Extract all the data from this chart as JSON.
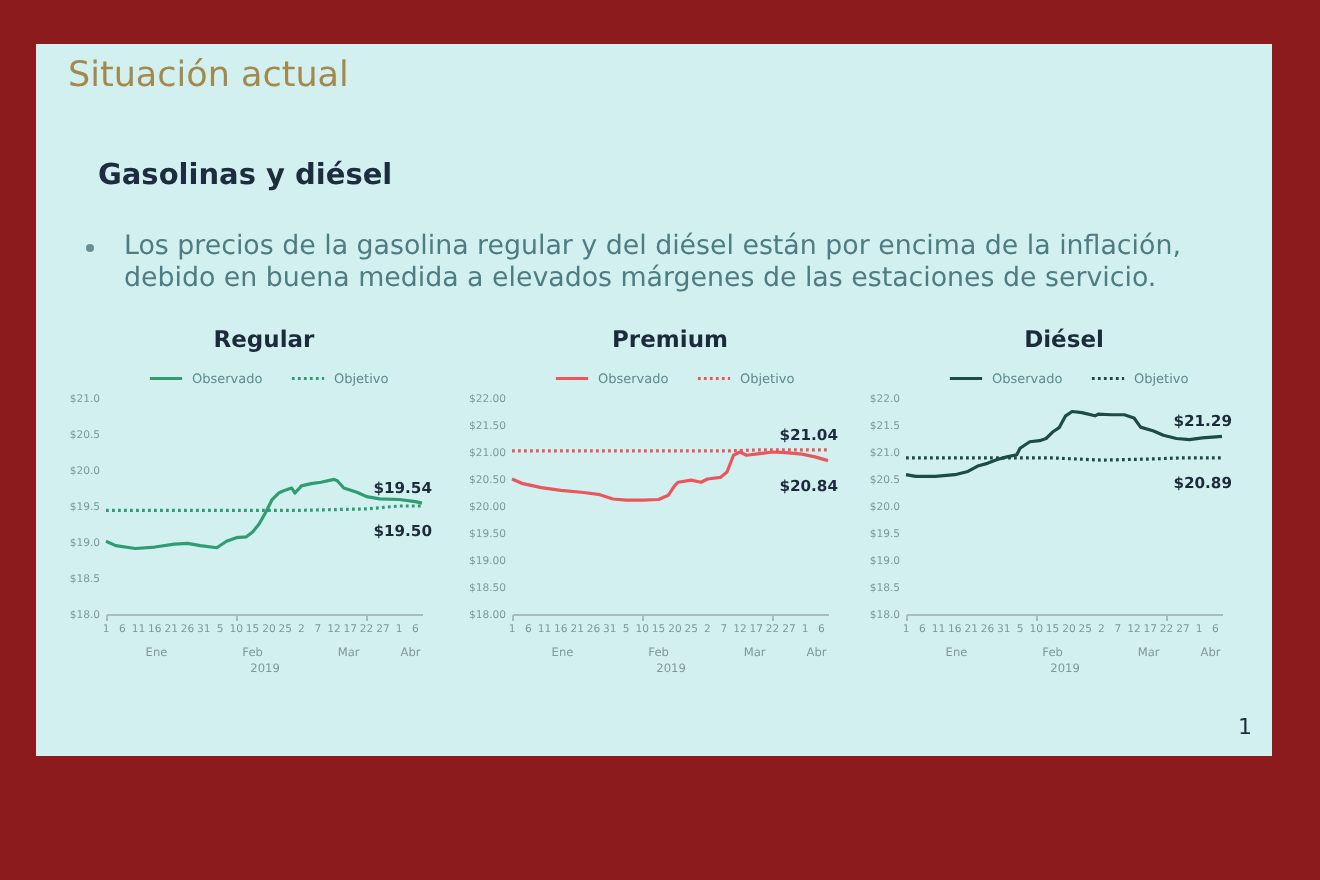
{
  "chart_data": [
    {
      "type": "other",
      "title": "Situación actual",
      "subtitle": "Gasolinas y diésel",
      "annotations": [
        "Los precios de la gasolina regular y del diésel están por encima de la inflación, debido en buena medida a elevados márgenes de las estaciones de servicio.",
        "1"
      ]
    },
    {
      "type": "line",
      "title": "Regular",
      "xlabel": "2019",
      "legend": "top",
      "xlim": [
        "2019-01-01",
        "2019-04-08"
      ],
      "xticks": [
        {
          "value": "2019-01-01",
          "label": "1"
        },
        {
          "value": "2019-01-06",
          "label": "6"
        },
        {
          "value": "2019-01-11",
          "label": "11"
        },
        {
          "value": "2019-01-16",
          "label": "16"
        },
        {
          "value": "2019-01-21",
          "label": "21"
        },
        {
          "value": "2019-01-26",
          "label": "26"
        },
        {
          "value": "2019-01-31",
          "label": "31"
        },
        {
          "value": "2019-02-05",
          "label": "5"
        },
        {
          "value": "2019-02-10",
          "label": "10"
        },
        {
          "value": "2019-02-15",
          "label": "15"
        },
        {
          "value": "2019-02-20",
          "label": "20"
        },
        {
          "value": "2019-02-25",
          "label": "25"
        },
        {
          "value": "2019-03-02",
          "label": "2"
        },
        {
          "value": "2019-03-07",
          "label": "7"
        },
        {
          "value": "2019-03-12",
          "label": "12"
        },
        {
          "value": "2019-03-17",
          "label": "17"
        },
        {
          "value": "2019-03-22",
          "label": "22"
        },
        {
          "value": "2019-03-27",
          "label": "27"
        },
        {
          "value": "2019-04-01",
          "label": "1"
        },
        {
          "value": "2019-04-06",
          "label": "6"
        }
      ],
      "ylim": [
        18,
        21
      ],
      "yticks": [
        {
          "value": 18,
          "label": "$18.0"
        },
        {
          "value": 18.5,
          "label": "$18.5"
        },
        {
          "value": 19,
          "label": "$19.0"
        },
        {
          "value": 19.5,
          "label": "$19.5"
        },
        {
          "value": 20,
          "label": "$20.0"
        },
        {
          "value": 20.5,
          "label": "$20.5"
        },
        {
          "value": 21,
          "label": "$21.0"
        }
      ],
      "series": [
        {
          "name": "Observado",
          "color": "#2f9c72",
          "line_style": "solid",
          "x": [
            "2019-01-01",
            "2019-01-04",
            "2019-01-10",
            "2019-01-16",
            "2019-01-22",
            "2019-01-26",
            "2019-01-30",
            "2019-02-04",
            "2019-02-07",
            "2019-02-10",
            "2019-02-13",
            "2019-02-15",
            "2019-02-17",
            "2019-02-19",
            "2019-02-21",
            "2019-02-23",
            "2019-02-25",
            "2019-02-27",
            "2019-02-28",
            "2019-03-02",
            "2019-03-05",
            "2019-03-08",
            "2019-03-12",
            "2019-03-13",
            "2019-03-15",
            "2019-03-19",
            "2019-03-22",
            "2019-03-26",
            "2019-04-01",
            "2019-04-06",
            "2019-04-08"
          ],
          "values": [
            19.01,
            18.95,
            18.91,
            18.93,
            18.97,
            18.98,
            18.95,
            18.92,
            19.01,
            19.06,
            19.07,
            19.14,
            19.25,
            19.41,
            19.59,
            19.68,
            19.72,
            19.75,
            19.68,
            19.78,
            19.81,
            19.83,
            19.87,
            19.85,
            19.75,
            19.69,
            19.63,
            19.6,
            19.59,
            19.56,
            19.54
          ]
        },
        {
          "name": "Objetivo",
          "color": "#2f9c72",
          "line_style": "dotted",
          "x": [
            "2019-01-01",
            "2019-03-02",
            "2019-03-22",
            "2019-04-01",
            "2019-04-08"
          ],
          "values": [
            19.44,
            19.44,
            19.46,
            19.5,
            19.5
          ]
        }
      ],
      "annotations": [
        "Ene",
        "Feb",
        "Mar",
        "Abr",
        {
          "text": "$19.54",
          "x": "2019-04-08",
          "y": 19.54
        },
        {
          "text": "$19.50",
          "x": "2019-04-08",
          "y": 19.5
        }
      ]
    },
    {
      "type": "line",
      "title": "Premium",
      "xlabel": "2019",
      "legend": "top",
      "xlim": [
        "2019-01-01",
        "2019-04-08"
      ],
      "xticks": [
        {
          "value": "2019-01-01",
          "label": "1"
        },
        {
          "value": "2019-01-06",
          "label": "6"
        },
        {
          "value": "2019-01-11",
          "label": "11"
        },
        {
          "value": "2019-01-16",
          "label": "16"
        },
        {
          "value": "2019-01-21",
          "label": "21"
        },
        {
          "value": "2019-01-26",
          "label": "26"
        },
        {
          "value": "2019-01-31",
          "label": "31"
        },
        {
          "value": "2019-02-05",
          "label": "5"
        },
        {
          "value": "2019-02-10",
          "label": "10"
        },
        {
          "value": "2019-02-15",
          "label": "15"
        },
        {
          "value": "2019-02-20",
          "label": "20"
        },
        {
          "value": "2019-02-25",
          "label": "25"
        },
        {
          "value": "2019-03-02",
          "label": "2"
        },
        {
          "value": "2019-03-07",
          "label": "7"
        },
        {
          "value": "2019-03-12",
          "label": "12"
        },
        {
          "value": "2019-03-17",
          "label": "17"
        },
        {
          "value": "2019-03-22",
          "label": "22"
        },
        {
          "value": "2019-03-27",
          "label": "27"
        },
        {
          "value": "2019-04-01",
          "label": "1"
        },
        {
          "value": "2019-04-06",
          "label": "6"
        }
      ],
      "ylim": [
        18,
        22
      ],
      "yticks": [
        {
          "value": 18,
          "label": "$18.00"
        },
        {
          "value": 18.5,
          "label": "$18.50"
        },
        {
          "value": 19,
          "label": "$19.00"
        },
        {
          "value": 19.5,
          "label": "$19.50"
        },
        {
          "value": 20,
          "label": "$20.00"
        },
        {
          "value": 20.5,
          "label": "$20.50"
        },
        {
          "value": 21,
          "label": "$21.00"
        },
        {
          "value": 21.5,
          "label": "$21.50"
        },
        {
          "value": 22,
          "label": "$22.00"
        }
      ],
      "series": [
        {
          "name": "Observado",
          "color": "#e9575c",
          "line_style": "solid",
          "x": [
            "2019-01-01",
            "2019-01-04",
            "2019-01-10",
            "2019-01-16",
            "2019-01-23",
            "2019-01-28",
            "2019-02-01",
            "2019-02-05",
            "2019-02-10",
            "2019-02-15",
            "2019-02-18",
            "2019-02-20",
            "2019-02-21",
            "2019-02-25",
            "2019-02-28",
            "2019-03-02",
            "2019-03-06",
            "2019-03-08",
            "2019-03-10",
            "2019-03-12",
            "2019-03-14",
            "2019-03-18",
            "2019-03-22",
            "2019-03-26",
            "2019-03-31",
            "2019-04-04",
            "2019-04-08"
          ],
          "values": [
            20.5,
            20.42,
            20.34,
            20.29,
            20.25,
            20.21,
            20.13,
            20.11,
            20.11,
            20.12,
            20.2,
            20.38,
            20.44,
            20.48,
            20.44,
            20.5,
            20.53,
            20.63,
            20.94,
            21.0,
            20.94,
            20.97,
            21.0,
            20.99,
            20.96,
            20.91,
            20.84
          ]
        },
        {
          "name": "Objetivo",
          "color": "#e9575c",
          "line_style": "dotted",
          "x": [
            "2019-01-01",
            "2019-03-08",
            "2019-03-18",
            "2019-04-08"
          ],
          "values": [
            21.02,
            21.02,
            21.04,
            21.04
          ]
        }
      ],
      "annotations": [
        "Ene",
        "Feb",
        "Mar",
        "Abr",
        {
          "text": "$21.04",
          "x": "2019-04-08",
          "y": 21.04
        },
        {
          "text": "$20.84",
          "x": "2019-04-08",
          "y": 20.84
        }
      ]
    },
    {
      "type": "line",
      "title": "Diésel",
      "xlabel": "2019",
      "legend": "top",
      "xlim": [
        "2019-01-01",
        "2019-04-08"
      ],
      "xticks": [
        {
          "value": "2019-01-01",
          "label": "1"
        },
        {
          "value": "2019-01-06",
          "label": "6"
        },
        {
          "value": "2019-01-11",
          "label": "11"
        },
        {
          "value": "2019-01-16",
          "label": "16"
        },
        {
          "value": "2019-01-21",
          "label": "21"
        },
        {
          "value": "2019-01-26",
          "label": "26"
        },
        {
          "value": "2019-01-31",
          "label": "31"
        },
        {
          "value": "2019-02-05",
          "label": "5"
        },
        {
          "value": "2019-02-10",
          "label": "10"
        },
        {
          "value": "2019-02-15",
          "label": "15"
        },
        {
          "value": "2019-02-20",
          "label": "20"
        },
        {
          "value": "2019-02-25",
          "label": "25"
        },
        {
          "value": "2019-03-02",
          "label": "2"
        },
        {
          "value": "2019-03-07",
          "label": "7"
        },
        {
          "value": "2019-03-12",
          "label": "12"
        },
        {
          "value": "2019-03-17",
          "label": "17"
        },
        {
          "value": "2019-03-22",
          "label": "22"
        },
        {
          "value": "2019-03-27",
          "label": "27"
        },
        {
          "value": "2019-04-01",
          "label": "1"
        },
        {
          "value": "2019-04-06",
          "label": "6"
        }
      ],
      "ylim": [
        18,
        22
      ],
      "yticks": [
        {
          "value": 18,
          "label": "$18.0"
        },
        {
          "value": 18.5,
          "label": "$18.5"
        },
        {
          "value": 19,
          "label": "$19.0"
        },
        {
          "value": 19.5,
          "label": "$19.5"
        },
        {
          "value": 20,
          "label": "$20.0"
        },
        {
          "value": 20.5,
          "label": "$20.5"
        },
        {
          "value": 21,
          "label": "$21.0"
        },
        {
          "value": 21.5,
          "label": "$21.5"
        },
        {
          "value": 22,
          "label": "$22.0"
        }
      ],
      "series": [
        {
          "name": "Observado",
          "color": "#1e4b48",
          "line_style": "solid",
          "x": [
            "2019-01-01",
            "2019-01-04",
            "2019-01-10",
            "2019-01-16",
            "2019-01-20",
            "2019-01-23",
            "2019-01-26",
            "2019-01-29",
            "2019-02-01",
            "2019-02-04",
            "2019-02-05",
            "2019-02-08",
            "2019-02-11",
            "2019-02-13",
            "2019-02-15",
            "2019-02-17",
            "2019-02-19",
            "2019-02-21",
            "2019-02-24",
            "2019-02-28",
            "2019-03-01",
            "2019-03-05",
            "2019-03-09",
            "2019-03-12",
            "2019-03-14",
            "2019-03-18",
            "2019-03-21",
            "2019-03-25",
            "2019-03-29",
            "2019-04-02",
            "2019-04-08"
          ],
          "values": [
            20.58,
            20.55,
            20.55,
            20.58,
            20.64,
            20.74,
            20.79,
            20.86,
            20.91,
            20.95,
            21.07,
            21.19,
            21.21,
            21.25,
            21.37,
            21.45,
            21.67,
            21.75,
            21.73,
            21.67,
            21.7,
            21.69,
            21.69,
            21.63,
            21.46,
            21.39,
            21.31,
            21.25,
            21.23,
            21.26,
            21.29
          ]
        },
        {
          "name": "Objetivo",
          "color": "#1e4b48",
          "line_style": "dotted",
          "x": [
            "2019-01-01",
            "2019-02-15",
            "2019-03-02",
            "2019-03-17",
            "2019-03-26",
            "2019-04-08"
          ],
          "values": [
            20.89,
            20.89,
            20.85,
            20.87,
            20.89,
            20.89
          ]
        }
      ],
      "annotations": [
        "Ene",
        "Feb",
        "Mar",
        "Abr",
        {
          "text": "$21.29",
          "x": "2019-04-08",
          "y": 21.29
        },
        {
          "text": "$20.89",
          "x": "2019-04-08",
          "y": 20.89
        }
      ]
    }
  ]
}
